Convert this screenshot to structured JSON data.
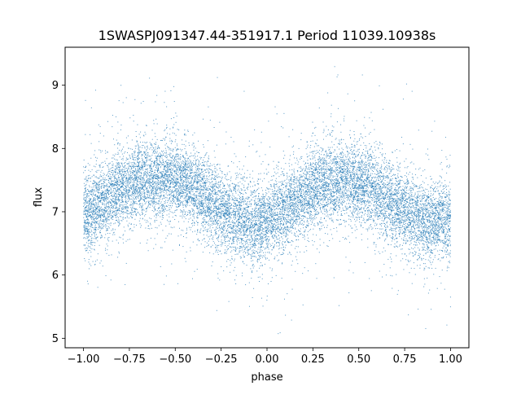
{
  "chart_data": {
    "type": "scatter",
    "title": "1SWASPJ091347.44-351917.1 Period 11039.10938s",
    "xlabel": "phase",
    "ylabel": "flux",
    "xlim": [
      -1.1,
      1.1
    ],
    "ylim": [
      4.85,
      9.6
    ],
    "x_ticks": [
      -1.0,
      -0.75,
      -0.5,
      -0.25,
      0.0,
      0.25,
      0.5,
      0.75,
      1.0
    ],
    "x_tick_labels": [
      "−1.00",
      "−0.75",
      "−0.50",
      "−0.25",
      "0.00",
      "0.25",
      "0.50",
      "0.75",
      "1.00"
    ],
    "y_ticks": [
      5,
      6,
      7,
      8,
      9
    ],
    "y_tick_labels": [
      "5",
      "6",
      "7",
      "8",
      "9"
    ],
    "grid": false,
    "legend": "none",
    "marker_color": "#1f77b4",
    "trend": {
      "x": [
        -1.0,
        -0.9,
        -0.8,
        -0.7,
        -0.6,
        -0.5,
        -0.4,
        -0.3,
        -0.2,
        -0.1,
        0.0,
        0.1,
        0.2,
        0.3,
        0.4,
        0.5,
        0.6,
        0.7,
        0.8,
        0.9,
        1.0
      ],
      "y": [
        6.95,
        7.15,
        7.35,
        7.48,
        7.52,
        7.5,
        7.38,
        7.15,
        6.92,
        6.8,
        6.85,
        7.05,
        7.25,
        7.42,
        7.5,
        7.45,
        7.3,
        7.1,
        6.92,
        6.85,
        6.9
      ]
    },
    "scatter_sigma": 0.32,
    "num_points": 14000
  }
}
